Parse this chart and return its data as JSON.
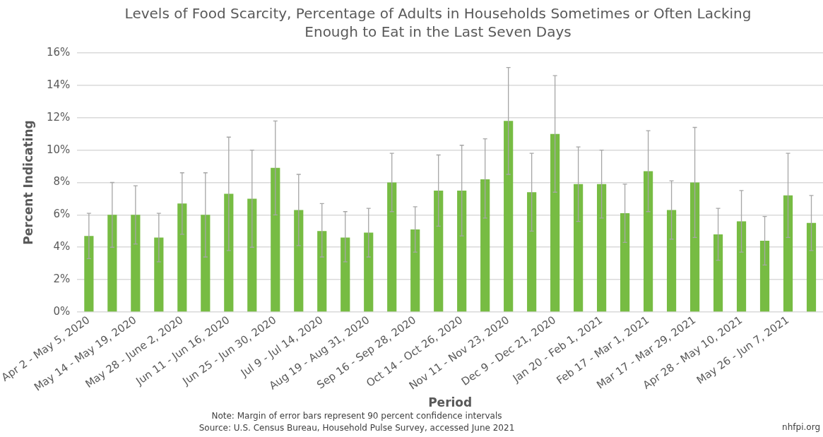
{
  "chart_data": {
    "type": "bar",
    "title": "Levels of Food Scarcity, Percentage of Adults in Households Sometimes or Often Lacking Enough to Eat in the Last Seven Days",
    "xlabel": "Period",
    "ylabel": "Percent Indicating",
    "categories": [
      "Apr 2 - May 5, 2020",
      null,
      "May 14 - May 19, 2020",
      null,
      "May 28 - June 2, 2020",
      null,
      "Jun 11 - Jun 16, 2020",
      null,
      "Jun 25 - Jun 30, 2020",
      null,
      "Jul 9 - Jul 14, 2020",
      null,
      "Aug 19 - Aug 31, 2020",
      null,
      "Sep 16 - Sep 28, 2020",
      null,
      "Oct 14 - Oct 26, 2020",
      null,
      "Nov 11 - Nov 23, 2020",
      null,
      "Dec 9 - Dec 21, 2020",
      null,
      "Jan 20 - Feb 1, 2021",
      null,
      "Feb 17 - Mar 1, 2021",
      null,
      "Mar 17 - Mar 29, 2021",
      null,
      "Apr 28 - May 10, 2021",
      null,
      "May 26 - Jun 7, 2021",
      null
    ],
    "values": [
      4.7,
      6.0,
      6.0,
      4.6,
      6.7,
      6.0,
      7.3,
      7.0,
      8.9,
      6.3,
      5.0,
      4.6,
      4.9,
      8.0,
      5.1,
      7.5,
      7.5,
      8.2,
      11.8,
      7.4,
      11.0,
      7.9,
      7.9,
      6.1,
      8.7,
      6.3,
      8.0,
      4.8,
      5.6,
      4.4,
      7.2,
      5.5
    ],
    "errors": [
      [
        3.3,
        6.1
      ],
      [
        4.0,
        8.0
      ],
      [
        4.2,
        7.8
      ],
      [
        3.1,
        6.1
      ],
      [
        4.8,
        8.6
      ],
      [
        3.4,
        8.6
      ],
      [
        3.8,
        10.8
      ],
      [
        4.0,
        10.0
      ],
      [
        6.0,
        11.8
      ],
      [
        4.1,
        8.5
      ],
      [
        3.4,
        6.7
      ],
      [
        3.1,
        6.2
      ],
      [
        3.4,
        6.4
      ],
      [
        6.2,
        9.8
      ],
      [
        3.7,
        6.5
      ],
      [
        5.3,
        9.7
      ],
      [
        4.7,
        10.3
      ],
      [
        5.8,
        10.7
      ],
      [
        8.5,
        15.1
      ],
      [
        5.0,
        9.8
      ],
      [
        7.4,
        14.6
      ],
      [
        5.6,
        10.2
      ],
      [
        5.8,
        10.0
      ],
      [
        4.3,
        7.9
      ],
      [
        6.2,
        11.2
      ],
      [
        4.5,
        8.1
      ],
      [
        4.6,
        11.4
      ],
      [
        3.2,
        6.4
      ],
      [
        3.7,
        7.5
      ],
      [
        2.9,
        5.9
      ],
      [
        4.6,
        9.8
      ],
      [
        3.8,
        7.2
      ]
    ],
    "color": "#77bc43",
    "ylim": [
      0,
      16
    ],
    "yticks": [
      {
        "value": 0,
        "label": "0%"
      },
      {
        "value": 2,
        "label": "2%"
      },
      {
        "value": 4,
        "label": "4%"
      },
      {
        "value": 6,
        "label": "6%"
      },
      {
        "value": 8,
        "label": "8%"
      },
      {
        "value": 10,
        "label": "10%"
      },
      {
        "value": 12,
        "label": "12%"
      },
      {
        "value": 14,
        "label": "14%"
      },
      {
        "value": 16,
        "label": "16%"
      }
    ],
    "grid": "y",
    "legend": false,
    "annotations": [
      "Note: Margin of error bars represent 90 percent confidence intervals",
      "Source: U.S. Census Bureau, Household Pulse Survey, accessed June 2021",
      "nhfpi.org"
    ]
  }
}
